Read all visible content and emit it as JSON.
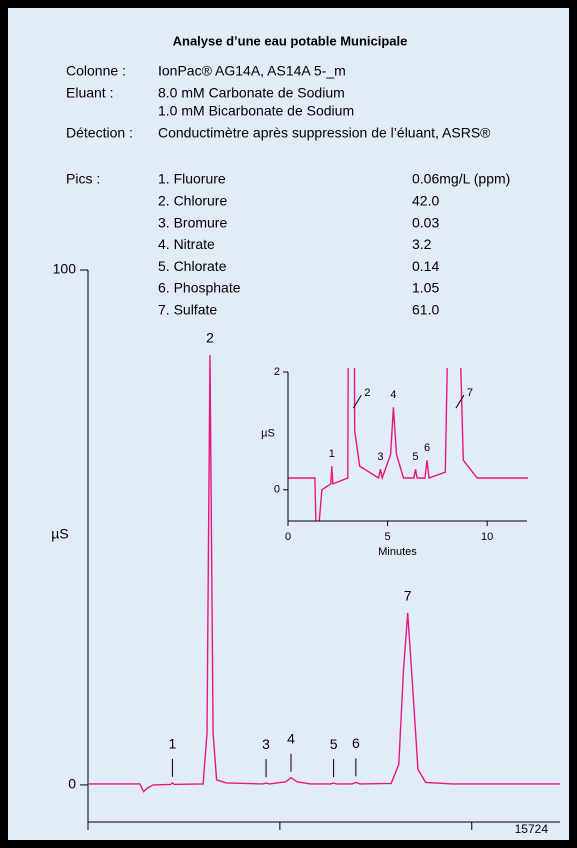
{
  "header": {
    "title": "Analyse d’une eau potable Municipale"
  },
  "conditions": [
    {
      "label": "Colonne :",
      "lines": [
        "IonPac® AG14A, AS14A 5-_m"
      ]
    },
    {
      "label": "Eluant :",
      "lines": [
        "8.0 mM Carbonate de Sodium",
        "1.0 mM Bicarbonate de Sodium"
      ]
    },
    {
      "label": "Détection :",
      "lines": [
        "Conductimètre après suppression de  l’éluant, ASRS®"
      ]
    }
  ],
  "peaks": {
    "label": "Pics :",
    "names": [
      "1. Fluorure",
      "2. Chlorure",
      "3. Bromure",
      "4. Nitrate",
      "5. Chlorate",
      "6. Phosphate",
      "7. Sulfate"
    ],
    "concentrations": [
      "0.06mg/L (ppm)",
      "42.0",
      "0.03",
      "3.2",
      "0.14",
      "1.05",
      "61.0"
    ]
  },
  "figure_number": "15724",
  "chart_data": [
    {
      "type": "line",
      "y_label": "µS",
      "color": "#e8177e",
      "x": [
        0,
        1.35,
        1.45,
        1.55,
        1.7,
        2.15,
        2.2,
        2.25,
        3.0,
        3.1,
        3.18,
        3.26,
        3.35,
        3.6,
        4.55,
        4.64,
        4.73,
        5.15,
        5.29,
        5.45,
        5.8,
        6.32,
        6.4,
        6.48,
        6.88,
        6.98,
        7.08,
        7.9,
        8.1,
        8.22,
        8.33,
        8.45,
        8.6,
        8.8,
        9.5,
        12.3
      ],
      "series": [
        {
          "values": [
            0.2,
            0.2,
            -1.3,
            -0.6,
            0,
            0.1,
            0.4,
            0.1,
            0.2,
            10,
            83.5,
            10,
            1,
            0.4,
            0.2,
            0.35,
            0.2,
            0.6,
            1.4,
            0.6,
            0.2,
            0.2,
            0.35,
            0.2,
            0.2,
            0.5,
            0.2,
            0.3,
            4,
            22,
            33.4,
            20,
            3,
            0.5,
            0.2,
            0.2
          ]
        }
      ],
      "peak_labels": [
        "1",
        "2",
        "3",
        "4",
        "5",
        "6",
        "7"
      ],
      "peak_x": [
        2.2,
        3.18,
        4.64,
        5.29,
        6.4,
        6.98,
        8.33
      ],
      "xlim": [
        0,
        12.3
      ],
      "xticks": [
        0,
        5,
        10
      ],
      "ylim": [
        -7.2,
        100
      ],
      "yticks": [
        0,
        100
      ]
    },
    {
      "type": "line",
      "x_label": "Minutes",
      "y_label": "µS",
      "xlim": [
        0,
        12
      ],
      "xticks": [
        0,
        5,
        10
      ],
      "ylim": [
        -0.53,
        2
      ],
      "yticks": [
        0,
        2
      ]
    }
  ]
}
